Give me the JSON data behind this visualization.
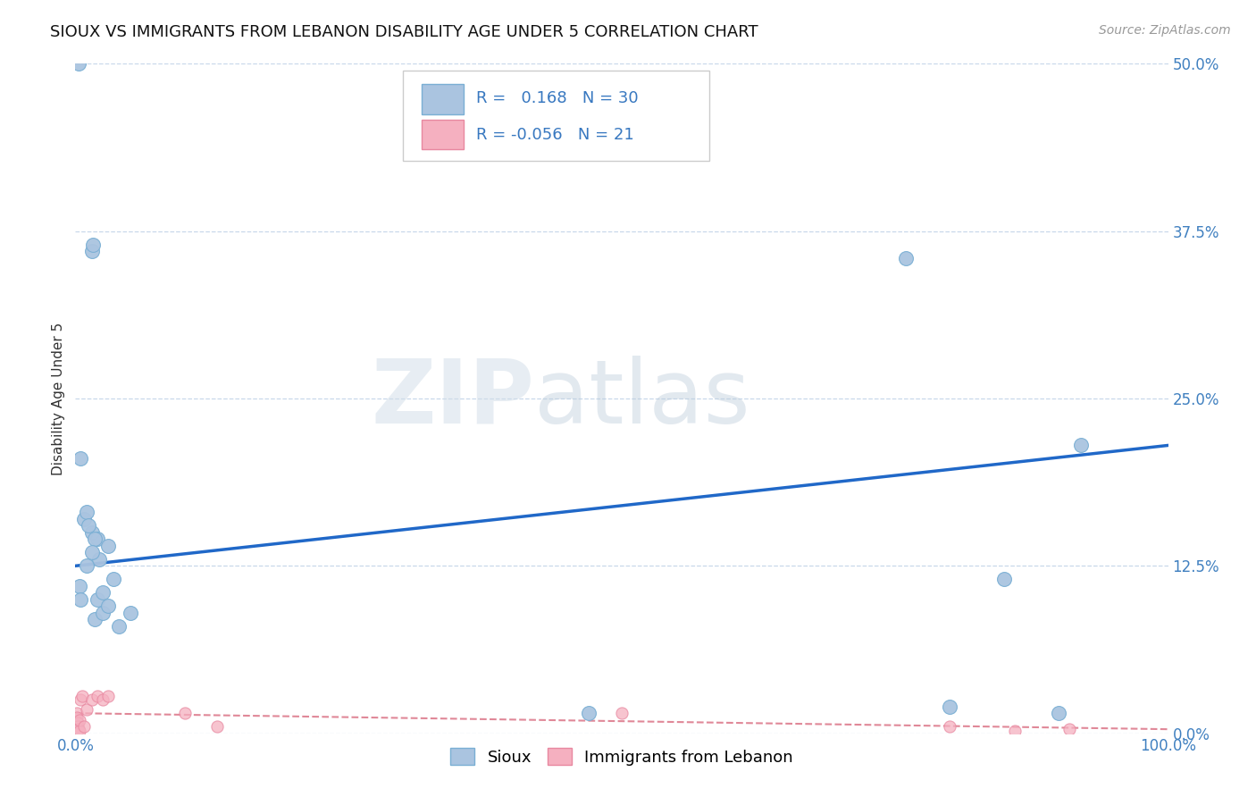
{
  "title": "SIOUX VS IMMIGRANTS FROM LEBANON DISABILITY AGE UNDER 5 CORRELATION CHART",
  "source": "Source: ZipAtlas.com",
  "ylabel": "Disability Age Under 5",
  "xlim": [
    0,
    100
  ],
  "ylim": [
    0,
    50
  ],
  "yticks": [
    0,
    12.5,
    25.0,
    37.5,
    50.0
  ],
  "ytick_labels": [
    "0.0%",
    "12.5%",
    "25.0%",
    "37.5%",
    "50.0%"
  ],
  "xtick_labels": [
    "0.0%",
    "100.0%"
  ],
  "sioux_x": [
    0.3,
    1.5,
    1.6,
    0.5,
    0.8,
    1.0,
    1.5,
    2.0,
    1.2,
    1.8,
    2.2,
    3.0,
    0.4,
    1.0,
    1.5,
    2.0,
    2.5,
    3.5,
    0.5,
    1.8,
    2.5,
    3.0,
    4.0,
    5.0,
    92.0,
    76.0,
    47.0,
    80.0,
    85.0,
    90.0
  ],
  "sioux_y": [
    50.0,
    36.0,
    36.5,
    20.5,
    16.0,
    16.5,
    15.0,
    14.5,
    15.5,
    14.5,
    13.0,
    14.0,
    11.0,
    12.5,
    13.5,
    10.0,
    10.5,
    11.5,
    10.0,
    8.5,
    9.0,
    9.5,
    8.0,
    9.0,
    21.5,
    35.5,
    1.5,
    2.0,
    11.5,
    1.5
  ],
  "lebanon_x": [
    0.1,
    0.15,
    0.2,
    0.25,
    0.3,
    0.35,
    0.4,
    0.5,
    0.6,
    0.8,
    1.0,
    1.5,
    2.0,
    2.5,
    3.0,
    10.0,
    13.0,
    50.0,
    80.0,
    86.0,
    91.0
  ],
  "lebanon_y": [
    1.5,
    1.2,
    0.8,
    0.5,
    0.3,
    0.2,
    1.0,
    2.5,
    2.8,
    0.5,
    1.8,
    2.5,
    2.8,
    2.5,
    2.8,
    1.5,
    0.5,
    1.5,
    0.5,
    0.2,
    0.3
  ],
  "sioux_color": "#aac4e0",
  "sioux_edge": "#7aafd4",
  "lebanon_color": "#f5b0c0",
  "lebanon_edge": "#e888a0",
  "trendline_sioux_color": "#2068c8",
  "trendline_lebanon_color": "#e08898",
  "trendline_sioux_start_y": 12.5,
  "trendline_sioux_end_y": 21.5,
  "trendline_leb_start_y": 1.5,
  "trendline_leb_end_y": 0.3,
  "R_sioux": 0.168,
  "N_sioux": 30,
  "R_lebanon": -0.056,
  "N_lebanon": 21,
  "watermark_zip": "ZIP",
  "watermark_atlas": "atlas",
  "background_color": "#ffffff",
  "grid_color": "#c8d8ea",
  "title_fontsize": 13,
  "label_fontsize": 11,
  "tick_fontsize": 12,
  "source_fontsize": 10
}
